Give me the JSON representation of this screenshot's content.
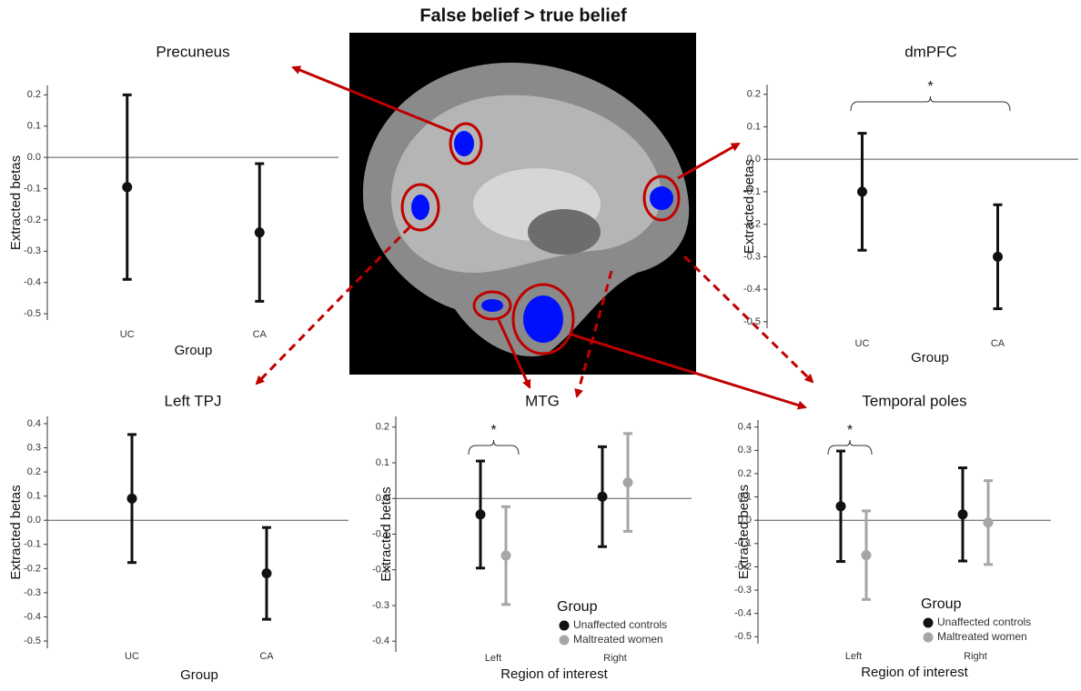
{
  "title": "False belief > true belief",
  "chart_data": [
    {
      "type": "errorbar",
      "title": "Precuneus",
      "ylabel": "Extracted betas",
      "xlabel": "Group",
      "categories": [
        "UC",
        "CA"
      ],
      "values": [
        -0.095,
        -0.24
      ],
      "errors": [
        0.295,
        0.22
      ],
      "color": "#111111",
      "ylim": [
        -0.52,
        0.23
      ],
      "yticks": [
        0.2,
        0.1,
        {
          "value": 0,
          "label": "0.0"
        },
        -0.1,
        -0.2,
        -0.3,
        -0.4,
        -0.5
      ]
    },
    {
      "type": "errorbar",
      "title": "dmPFC",
      "ylabel": "Extracted betas",
      "xlabel": "Group",
      "annotation": "*",
      "categories": [
        "UC",
        "CA"
      ],
      "values": [
        -0.1,
        -0.3
      ],
      "errors": [
        0.18,
        0.16
      ],
      "color": "#111111",
      "ylim": [
        -0.52,
        0.23
      ],
      "yticks": [
        0.2,
        0.1,
        {
          "value": 0,
          "label": "0.0"
        },
        -0.1,
        -0.2,
        -0.3,
        -0.4,
        -0.5
      ]
    },
    {
      "type": "errorbar",
      "title": "Left TPJ",
      "ylabel": "Extracted betas",
      "xlabel": "Group",
      "categories": [
        "UC",
        "CA"
      ],
      "values": [
        0.09,
        -0.22
      ],
      "errors": [
        0.265,
        0.19
      ],
      "color": "#111111",
      "ylim": [
        -0.53,
        0.43
      ],
      "yticks": [
        0.4,
        0.3,
        0.2,
        0.1,
        {
          "value": 0,
          "label": "0.0"
        },
        -0.1,
        -0.2,
        -0.3,
        -0.4,
        -0.5
      ]
    },
    {
      "type": "errorbar",
      "title": "MTG",
      "ylabel": "Extracted betas",
      "xlabel": "Region of interest",
      "annotation": "*",
      "legend_title": "Group",
      "categories": [
        "Left",
        "Right"
      ],
      "series": [
        {
          "name": "Unaffected controls",
          "color": "#111111",
          "values": [
            -0.045,
            0.005
          ],
          "errors": [
            0.15,
            0.14
          ]
        },
        {
          "name": "Maltreated women",
          "color": "#a6a6a6",
          "values": [
            -0.16,
            0.045
          ],
          "errors": [
            0.137,
            0.137
          ]
        }
      ],
      "ylim": [
        -0.43,
        0.23
      ],
      "yticks": [
        0.2,
        0.1,
        {
          "value": 0,
          "label": "0.0"
        },
        -0.1,
        -0.2,
        -0.3,
        -0.4
      ]
    },
    {
      "type": "errorbar",
      "title": "Temporal poles",
      "ylabel": "Extracted betas",
      "xlabel": "Region of interest",
      "annotation": "*",
      "legend_title": "Group",
      "categories": [
        "Left",
        "Right"
      ],
      "series": [
        {
          "name": "Unaffected controls",
          "color": "#111111",
          "values": [
            0.06,
            0.025
          ],
          "errors": [
            0.237,
            0.2
          ]
        },
        {
          "name": "Maltreated women",
          "color": "#a6a6a6",
          "values": [
            -0.15,
            -0.01
          ],
          "errors": [
            0.19,
            0.18
          ]
        }
      ],
      "ylim": [
        -0.53,
        0.43
      ],
      "yticks": [
        0.4,
        0.3,
        0.2,
        0.1,
        {
          "value": 0,
          "label": "0.0"
        },
        -0.1,
        -0.2,
        -0.3,
        -0.4,
        -0.5
      ]
    }
  ]
}
